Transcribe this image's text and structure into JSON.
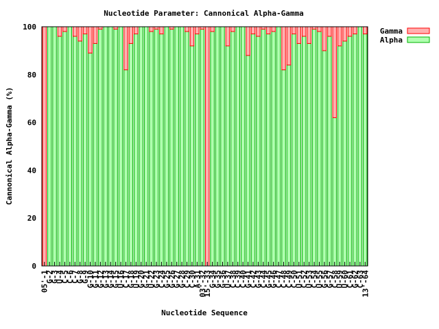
{
  "chart_data": {
    "type": "bar",
    "stacked": true,
    "title": "Nucleotide Parameter: Cannonical Alpha-Gamma",
    "xlabel": "Nucleotide Sequence",
    "ylabel": "Cannonical Alpha-Gamma (%)",
    "ylim": [
      0,
      100
    ],
    "yticks": [
      0,
      20,
      40,
      60,
      80,
      100
    ],
    "legend_position": "top-right",
    "grid": false,
    "categories": [
      "05'-1",
      "G-2",
      "G-3",
      "U-4",
      "C-5",
      "C-6",
      "C-7",
      "G-8",
      "G-9",
      "G-10",
      "G-11",
      "G-12",
      "G-13",
      "G-14",
      "G-15",
      "U-16",
      "C-17",
      "G-18",
      "U-19",
      "G-20",
      "G-21",
      "U-22",
      "G-23",
      "C-24",
      "G-25",
      "G-26",
      "G-27",
      "G-28",
      "C-29",
      "C-30",
      "A-31",
      "03'-32",
      "15'-33",
      "G-34",
      "G-35",
      "G-36",
      "U-37",
      "C-38",
      "C-39",
      "C-40",
      "G-41",
      "C-42",
      "G-43",
      "C-44",
      "G-45",
      "G-46",
      "C-47",
      "C-48",
      "C-49",
      "C-50",
      "U-51",
      "C-52",
      "U-53",
      "C-54",
      "U-55",
      "G-56",
      "G-57",
      "C-58",
      "U-59",
      "U-60",
      "C-61",
      "G-62",
      "C-63",
      "13'-64"
    ],
    "series": [
      {
        "name": "Gamma",
        "color": "#ffb0b0",
        "stroke": "#ff0000",
        "values": [
          100,
          0,
          0,
          4,
          2,
          0,
          4,
          6,
          3,
          11,
          7,
          1,
          0,
          0,
          1,
          0,
          18,
          7,
          3,
          0,
          0,
          2,
          1,
          3,
          0,
          1,
          0,
          0,
          2,
          8,
          3,
          1,
          100,
          2,
          0,
          0,
          8,
          2,
          0,
          0,
          12,
          3,
          4,
          1,
          3,
          2,
          0,
          18,
          16,
          3,
          7,
          4,
          7,
          1,
          2,
          10,
          4,
          38,
          8,
          6,
          4,
          3,
          0,
          3
        ]
      },
      {
        "name": "Alpha",
        "color": "#b0ffb0",
        "stroke": "#00b000",
        "values": [
          0,
          100,
          100,
          96,
          98,
          100,
          96,
          94,
          97,
          89,
          93,
          99,
          100,
          100,
          99,
          100,
          82,
          93,
          97,
          100,
          100,
          98,
          99,
          97,
          100,
          99,
          100,
          100,
          98,
          92,
          97,
          99,
          0,
          98,
          100,
          100,
          92,
          98,
          100,
          100,
          88,
          97,
          96,
          99,
          97,
          98,
          100,
          82,
          84,
          97,
          93,
          96,
          93,
          99,
          98,
          90,
          96,
          62,
          92,
          94,
          96,
          97,
          100,
          97
        ]
      }
    ]
  }
}
